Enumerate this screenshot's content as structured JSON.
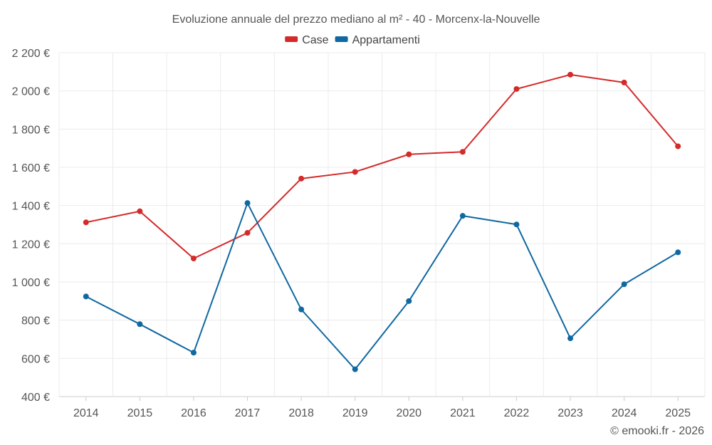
{
  "chart_data": {
    "type": "line",
    "title": "Evoluzione annuale del prezzo mediano al m² - 40 - Morcenx-la-Nouvelle",
    "categories": [
      "2014",
      "2015",
      "2016",
      "2017",
      "2018",
      "2019",
      "2020",
      "2021",
      "2022",
      "2023",
      "2024",
      "2025"
    ],
    "series": [
      {
        "name": "Case",
        "color": "#d42a2a",
        "values": [
          1312,
          1370,
          1123,
          1257,
          1541,
          1576,
          1668,
          1681,
          2010,
          2085,
          2044,
          1710
        ]
      },
      {
        "name": "Appartamenti",
        "color": "#0f68a0",
        "values": [
          924,
          779,
          630,
          1413,
          856,
          543,
          900,
          1346,
          1301,
          705,
          988,
          1155
        ]
      }
    ],
    "ylim": [
      400,
      2200
    ],
    "yticks": [
      400,
      600,
      800,
      1000,
      1200,
      1400,
      1600,
      1800,
      2000,
      2200
    ],
    "ytick_labels": [
      "400 €",
      "600 €",
      "800 €",
      "1 000 €",
      "1 200 €",
      "1 400 €",
      "1 600 €",
      "1 800 €",
      "2 000 €",
      "2 200 €"
    ],
    "legend_position": "top-center",
    "grid": true
  },
  "credit": "© emooki.fr - 2026"
}
